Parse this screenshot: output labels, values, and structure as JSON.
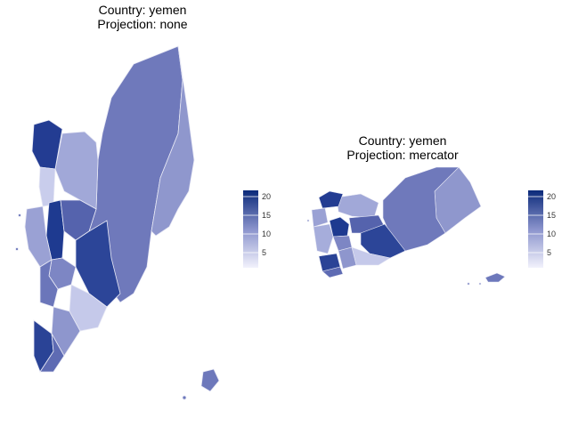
{
  "panels": [
    {
      "title_line1": "Country: yemen",
      "title_line2": "Projection: none",
      "legend_ticks": [
        "20",
        "15",
        "10",
        "5"
      ]
    },
    {
      "title_line1": "Country: yemen",
      "title_line2": "Projection: mercator",
      "legend_ticks": [
        "20",
        "15",
        "10",
        "5"
      ]
    }
  ],
  "legend": {
    "min": 1,
    "max": 22,
    "ticks": [
      20,
      15,
      10,
      5
    ],
    "color_low": "#f2f2fc",
    "color_high": "#0b2a7a"
  },
  "colors": {
    "region_dark": "#1f3a8f",
    "region_mid": "#6a78bd",
    "region_light": "#a6addb",
    "region_pale": "#cdd1ee",
    "border": "#e8e9f5"
  }
}
